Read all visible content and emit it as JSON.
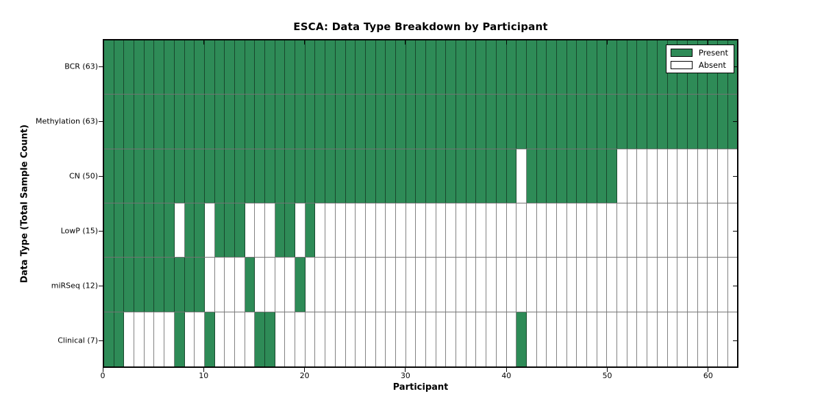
{
  "chart_data": {
    "type": "heatmap",
    "title": "ESCA: Data Type Breakdown by Participant",
    "xlabel": "Participant",
    "ylabel": "Data Type (Total Sample Count)",
    "x_ticks": [
      0,
      10,
      20,
      30,
      40,
      50,
      60
    ],
    "x_range": [
      0,
      63
    ],
    "n_participants": 63,
    "grid": true,
    "legend_position": "upper right",
    "colors": {
      "present": "#2e8b57",
      "absent": "#ffffff"
    },
    "legend": [
      {
        "label": "Present",
        "color": "#2e8b57"
      },
      {
        "label": "Absent",
        "color": "#ffffff"
      }
    ],
    "rows": [
      {
        "label": "BCR (63)",
        "name": "BCR",
        "total": 63,
        "present_ranges": [
          [
            0,
            62
          ]
        ]
      },
      {
        "label": "Methylation (63)",
        "name": "Methylation",
        "total": 63,
        "present_ranges": [
          [
            0,
            62
          ]
        ]
      },
      {
        "label": "CN (50)",
        "name": "CN",
        "total": 50,
        "present_ranges": [
          [
            0,
            40
          ],
          [
            42,
            50
          ]
        ]
      },
      {
        "label": "LowP (15)",
        "name": "LowP",
        "total": 15,
        "present_ranges": [
          [
            0,
            6
          ],
          [
            8,
            9
          ],
          [
            11,
            13
          ],
          [
            17,
            18
          ],
          [
            20,
            20
          ]
        ]
      },
      {
        "label": "miRSeq (12)",
        "name": "miRSeq",
        "total": 12,
        "present_ranges": [
          [
            0,
            9
          ],
          [
            14,
            14
          ],
          [
            19,
            19
          ]
        ]
      },
      {
        "label": "Clinical (7)",
        "name": "Clinical",
        "total": 7,
        "present_ranges": [
          [
            0,
            1
          ],
          [
            7,
            7
          ],
          [
            10,
            10
          ],
          [
            15,
            16
          ],
          [
            41,
            41
          ]
        ]
      }
    ]
  }
}
